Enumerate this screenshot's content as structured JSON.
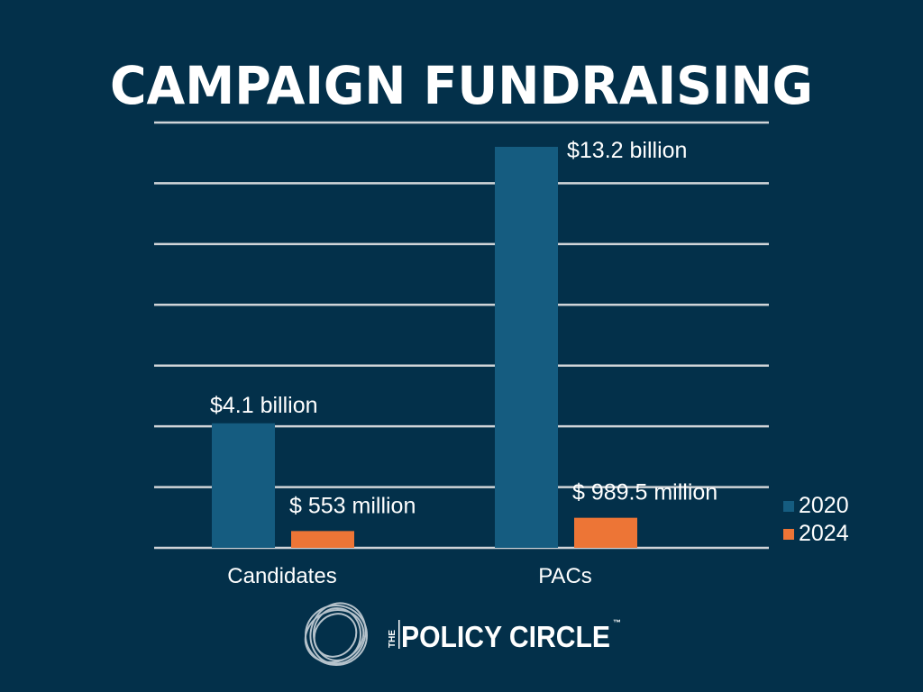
{
  "chart_data": {
    "type": "bar",
    "title": "CAMPAIGN FUNDRAISING",
    "categories": [
      "Candidates",
      "PACs"
    ],
    "series": [
      {
        "name": "2020",
        "values": [
          4.1,
          13.2
        ],
        "labels": [
          "$4.1 billion",
          "$13.2 billion"
        ],
        "color": "#155c80"
      },
      {
        "name": "2024",
        "values": [
          0.553,
          0.9895
        ],
        "labels": [
          "$ 553 million",
          "$ 989.5 million"
        ],
        "color": "#ed7536"
      }
    ],
    "unit": "billion USD",
    "ylim": [
      0,
      14
    ],
    "yticks": [
      0,
      2,
      4,
      6,
      8,
      10,
      12,
      14
    ],
    "grid": true,
    "legend": "right",
    "colors": {
      "background": "#03304a",
      "grid": "#d0d4d8"
    }
  },
  "logo": {
    "the": "THE",
    "name": "POLICY CIRCLE",
    "tm": "™"
  }
}
